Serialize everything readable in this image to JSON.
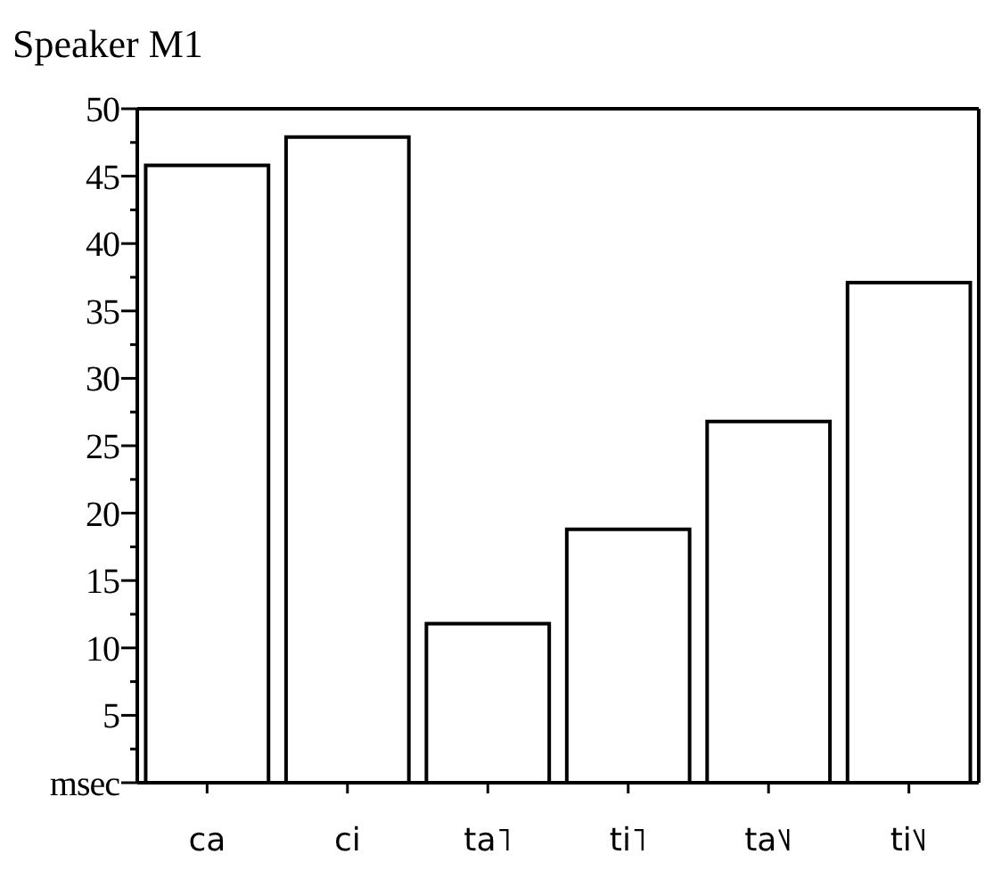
{
  "chart_data": {
    "type": "bar",
    "title": "Speaker M1",
    "categories": [
      "ca",
      "ci",
      "ta˥",
      "ti˥",
      "ta˥˩",
      "ti˥˩"
    ],
    "values": [
      45.8,
      47.9,
      11.8,
      18.8,
      26.8,
      37.1
    ],
    "color": "#ffffff",
    "ylim": [
      0,
      50
    ],
    "yticks": [
      {
        "value": 0,
        "label": "msec"
      },
      {
        "value": 2.5,
        "label": null
      },
      5,
      {
        "value": 7.5,
        "label": null
      },
      10,
      {
        "value": 12.5,
        "label": null
      },
      15,
      {
        "value": 17.5,
        "label": null
      },
      20,
      {
        "value": 22.5,
        "label": null
      },
      25,
      {
        "value": 27.5,
        "label": null
      },
      30,
      {
        "value": 32.5,
        "label": null
      },
      35,
      {
        "value": 37.5,
        "label": null
      },
      40,
      {
        "value": 42.5,
        "label": null
      },
      45,
      {
        "value": 47.5,
        "label": null
      },
      50
    ],
    "grid": false
  }
}
